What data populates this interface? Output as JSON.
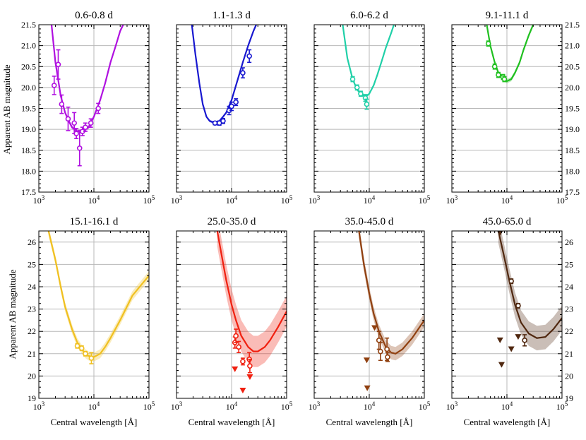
{
  "figure": {
    "ylabel": "Apparent AB magnitude",
    "xlabel": "Central wavelength [Å]"
  },
  "chart_data": [
    {
      "type": "scatter",
      "title": "0.6-0.8 d",
      "color": "#b010e0",
      "row": 0,
      "xlim": [
        1000,
        100000
      ],
      "ylim": [
        21.5,
        17.5
      ],
      "xscale": "log",
      "yticks": [
        "17.5",
        "18.0",
        "18.5",
        "19.0",
        "19.5",
        "20.0",
        "20.5",
        "21.0",
        "21.5"
      ],
      "xticks": [
        "10^3",
        "10^4",
        "10^5"
      ],
      "model": [
        [
          1700,
          21.5
        ],
        [
          2000,
          20.6
        ],
        [
          2500,
          19.8
        ],
        [
          3000,
          19.4
        ],
        [
          3500,
          19.2
        ],
        [
          4000,
          19.05
        ],
        [
          5000,
          18.95
        ],
        [
          6000,
          18.95
        ],
        [
          7000,
          19.0
        ],
        [
          8000,
          19.05
        ],
        [
          10000,
          19.3
        ],
        [
          13000,
          19.7
        ],
        [
          16000,
          20.1
        ],
        [
          20000,
          20.6
        ],
        [
          25000,
          21.0
        ],
        [
          30000,
          21.35
        ],
        [
          34000,
          21.5
        ]
      ],
      "band": 0.05,
      "points": [
        {
          "x": 1900,
          "y": 20.05,
          "err": 0.22,
          "up": false
        },
        {
          "x": 2250,
          "y": 20.55,
          "err": 0.35,
          "up": false
        },
        {
          "x": 2600,
          "y": 19.6,
          "err": 0.22,
          "up": false
        },
        {
          "x": 3400,
          "y": 19.25,
          "err": 0.28,
          "up": false
        },
        {
          "x": 4400,
          "y": 19.15,
          "err": 0.25,
          "up": false
        },
        {
          "x": 4800,
          "y": 18.9,
          "err": 0.12,
          "up": false
        },
        {
          "x": 5500,
          "y": 18.55,
          "err": 0.42,
          "up": false
        },
        {
          "x": 6200,
          "y": 18.95,
          "err": 0.1,
          "up": false
        },
        {
          "x": 7000,
          "y": 19.05,
          "err": 0.1,
          "up": false
        },
        {
          "x": 8800,
          "y": 19.15,
          "err": 0.1,
          "up": false
        },
        {
          "x": 12000,
          "y": 19.5,
          "err": 0.12,
          "up": false
        }
      ]
    },
    {
      "type": "scatter",
      "title": "1.1-1.3 d",
      "color": "#1818d0",
      "row": 0,
      "xlim": [
        1000,
        100000
      ],
      "ylim": [
        21.5,
        17.5
      ],
      "xscale": "log",
      "yticks": [],
      "xticks": [
        "10^3",
        "10^4",
        "10^5"
      ],
      "model": [
        [
          1900,
          21.5
        ],
        [
          2200,
          20.8
        ],
        [
          2600,
          20.1
        ],
        [
          3000,
          19.6
        ],
        [
          3500,
          19.3
        ],
        [
          4000,
          19.2
        ],
        [
          5000,
          19.15
        ],
        [
          6000,
          19.2
        ],
        [
          7000,
          19.3
        ],
        [
          8000,
          19.4
        ],
        [
          10000,
          19.7
        ],
        [
          13000,
          20.2
        ],
        [
          16000,
          20.6
        ],
        [
          20000,
          21.0
        ],
        [
          25000,
          21.35
        ],
        [
          28000,
          21.5
        ]
      ],
      "band": 0.03,
      "points": [
        {
          "x": 5000,
          "y": 19.15,
          "err": 0.04,
          "up": false
        },
        {
          "x": 6000,
          "y": 19.15,
          "err": 0.05,
          "up": false
        },
        {
          "x": 7000,
          "y": 19.2,
          "err": 0.06,
          "up": false
        },
        {
          "x": 9000,
          "y": 19.45,
          "err": 0.1,
          "up": false
        },
        {
          "x": 10000,
          "y": 19.55,
          "err": 0.1,
          "up": false
        },
        {
          "x": 12000,
          "y": 19.65,
          "err": 0.08,
          "up": false
        },
        {
          "x": 16000,
          "y": 20.35,
          "err": 0.12,
          "up": false
        },
        {
          "x": 21000,
          "y": 20.75,
          "err": 0.15,
          "up": false
        }
      ]
    },
    {
      "type": "scatter",
      "title": "6.0-6.2 d",
      "color": "#20d0a8",
      "row": 0,
      "xlim": [
        1000,
        100000
      ],
      "ylim": [
        21.5,
        17.5
      ],
      "xscale": "log",
      "yticks": [],
      "xticks": [
        "10^3",
        "10^4",
        "10^5"
      ],
      "model": [
        [
          3300,
          21.5
        ],
        [
          4000,
          20.7
        ],
        [
          5000,
          20.2
        ],
        [
          6000,
          19.95
        ],
        [
          7000,
          19.85
        ],
        [
          8000,
          19.8
        ],
        [
          9000,
          19.8
        ],
        [
          10000,
          19.85
        ],
        [
          12000,
          20.05
        ],
        [
          14000,
          20.3
        ],
        [
          17000,
          20.65
        ],
        [
          20000,
          20.95
        ],
        [
          25000,
          21.3
        ],
        [
          28000,
          21.5
        ]
      ],
      "band": 0.03,
      "points": [
        {
          "x": 5000,
          "y": 20.2,
          "err": 0.06,
          "up": false
        },
        {
          "x": 6000,
          "y": 20.0,
          "err": 0.06,
          "up": false
        },
        {
          "x": 7000,
          "y": 19.85,
          "err": 0.06,
          "up": false
        },
        {
          "x": 8500,
          "y": 19.75,
          "err": 0.08,
          "up": false
        },
        {
          "x": 9000,
          "y": 19.6,
          "err": 0.12,
          "up": false
        }
      ]
    },
    {
      "type": "scatter",
      "title": "9.1-11.1 d",
      "color": "#20c020",
      "row": 0,
      "xlim": [
        1000,
        100000
      ],
      "ylim": [
        21.5,
        17.5
      ],
      "xscale": "log",
      "yticks": [
        "17.5",
        "18.0",
        "18.5",
        "19.0",
        "19.5",
        "20.0",
        "20.5",
        "21.0",
        "21.5"
      ],
      "xticks": [
        "10^3",
        "10^4",
        "10^5"
      ],
      "yaxis": "right",
      "model": [
        [
          4300,
          21.5
        ],
        [
          5000,
          21.0
        ],
        [
          6000,
          20.6
        ],
        [
          7000,
          20.35
        ],
        [
          8000,
          20.25
        ],
        [
          9000,
          20.2
        ],
        [
          10000,
          20.15
        ],
        [
          12000,
          20.2
        ],
        [
          14000,
          20.35
        ],
        [
          17000,
          20.6
        ],
        [
          20000,
          20.9
        ],
        [
          25000,
          21.25
        ],
        [
          30000,
          21.5
        ]
      ],
      "band": 0.05,
      "points": [
        {
          "x": 4600,
          "y": 21.05,
          "err": 0.06,
          "up": false
        },
        {
          "x": 6000,
          "y": 20.5,
          "err": 0.06,
          "up": false
        },
        {
          "x": 7000,
          "y": 20.3,
          "err": 0.06,
          "up": false
        },
        {
          "x": 8500,
          "y": 20.25,
          "err": 0.06,
          "up": false
        },
        {
          "x": 9000,
          "y": 20.2,
          "err": 0.06,
          "up": false
        }
      ]
    },
    {
      "type": "scatter",
      "title": "15.1-16.1 d",
      "color": "#f0c020",
      "row": 1,
      "xlim": [
        1000,
        100000
      ],
      "ylim": [
        26.5,
        19
      ],
      "xscale": "log",
      "yticks": [
        "19",
        "20",
        "21",
        "22",
        "23",
        "24",
        "25",
        "26"
      ],
      "xticks": [
        "10^3",
        "10^4",
        "10^5"
      ],
      "model": [
        [
          1500,
          26.5
        ],
        [
          2000,
          25.2
        ],
        [
          2500,
          24.0
        ],
        [
          3000,
          23.1
        ],
        [
          4000,
          22.1
        ],
        [
          5000,
          21.5
        ],
        [
          6000,
          21.2
        ],
        [
          7000,
          21.0
        ],
        [
          8000,
          20.9
        ],
        [
          10000,
          20.85
        ],
        [
          13000,
          21.0
        ],
        [
          16000,
          21.3
        ],
        [
          20000,
          21.7
        ],
        [
          30000,
          22.5
        ],
        [
          50000,
          23.6
        ],
        [
          100000,
          24.5
        ]
      ],
      "band": 0.2,
      "points": [
        {
          "x": 5000,
          "y": 21.35,
          "err": 0.1,
          "up": false
        },
        {
          "x": 6000,
          "y": 21.25,
          "err": 0.1,
          "up": false
        },
        {
          "x": 7000,
          "y": 21.0,
          "err": 0.1,
          "up": false
        },
        {
          "x": 9000,
          "y": 20.8,
          "err": 0.25,
          "up": false
        }
      ]
    },
    {
      "type": "scatter",
      "title": "25.0-35.0 d",
      "color": "#f02010",
      "row": 1,
      "xlim": [
        1000,
        100000
      ],
      "ylim": [
        26.5,
        19
      ],
      "xscale": "log",
      "yticks": [],
      "xticks": [
        "10^3",
        "10^4",
        "10^5"
      ],
      "model": [
        [
          5500,
          26.5
        ],
        [
          6500,
          25.5
        ],
        [
          8000,
          24.3
        ],
        [
          10000,
          23.2
        ],
        [
          12000,
          22.5
        ],
        [
          15000,
          21.8
        ],
        [
          20000,
          21.3
        ],
        [
          25000,
          21.1
        ],
        [
          30000,
          21.1
        ],
        [
          40000,
          21.3
        ],
        [
          50000,
          21.6
        ],
        [
          70000,
          22.2
        ],
        [
          100000,
          22.9
        ]
      ],
      "band": 0.7,
      "points": [
        {
          "x": 11500,
          "y": 21.5,
          "err": 0.25,
          "up": false
        },
        {
          "x": 12000,
          "y": 21.8,
          "err": 0.3,
          "up": false
        },
        {
          "x": 13500,
          "y": 21.3,
          "err": 0.25,
          "up": false
        },
        {
          "x": 16000,
          "y": 20.65,
          "err": 0.15,
          "up": false
        },
        {
          "x": 21000,
          "y": 20.75,
          "err": 0.3,
          "up": false
        },
        {
          "x": 21500,
          "y": 20.45,
          "err": 0.3,
          "up": false
        },
        {
          "x": 11500,
          "y": 20.3,
          "err": 0,
          "up": true
        },
        {
          "x": 16000,
          "y": 19.35,
          "err": 0,
          "up": true
        },
        {
          "x": 21500,
          "y": 19.95,
          "err": 0,
          "up": true
        }
      ]
    },
    {
      "type": "scatter",
      "title": "35.0-45.0 d",
      "color": "#904010",
      "row": 1,
      "xlim": [
        1000,
        100000
      ],
      "ylim": [
        26.5,
        19
      ],
      "xscale": "log",
      "yticks": [],
      "xticks": [
        "10^3",
        "10^4",
        "10^5"
      ],
      "model": [
        [
          6500,
          26.5
        ],
        [
          8000,
          25.0
        ],
        [
          10000,
          23.7
        ],
        [
          12000,
          22.8
        ],
        [
          15000,
          22.0
        ],
        [
          20000,
          21.3
        ],
        [
          25000,
          21.05
        ],
        [
          30000,
          21.0
        ],
        [
          40000,
          21.2
        ],
        [
          60000,
          21.7
        ],
        [
          100000,
          22.5
        ]
      ],
      "band": 0.3,
      "points": [
        {
          "x": 15000,
          "y": 21.6,
          "err": 0.4,
          "up": false
        },
        {
          "x": 16000,
          "y": 21.1,
          "err": 0.4,
          "up": false
        },
        {
          "x": 21000,
          "y": 21.2,
          "err": 0.5,
          "up": false
        },
        {
          "x": 21500,
          "y": 20.85,
          "err": 0.2,
          "up": false
        },
        {
          "x": 9200,
          "y": 19.45,
          "err": 0,
          "up": true
        },
        {
          "x": 9000,
          "y": 20.7,
          "err": 0,
          "up": true
        },
        {
          "x": 12500,
          "y": 22.15,
          "err": 0,
          "up": true
        }
      ]
    },
    {
      "type": "scatter",
      "title": "45.0-65.0 d",
      "color": "#502810",
      "row": 1,
      "xlim": [
        1000,
        100000
      ],
      "ylim": [
        26.5,
        19
      ],
      "xscale": "log",
      "yticks": [
        "19",
        "20",
        "21",
        "22",
        "23",
        "24",
        "25",
        "26"
      ],
      "xticks": [
        "10^3",
        "10^4",
        "10^5"
      ],
      "yaxis": "right",
      "model": [
        [
          7000,
          26.5
        ],
        [
          9000,
          25.3
        ],
        [
          11000,
          24.3
        ],
        [
          14000,
          23.2
        ],
        [
          18000,
          22.4
        ],
        [
          25000,
          21.9
        ],
        [
          35000,
          21.7
        ],
        [
          50000,
          21.75
        ],
        [
          70000,
          22.1
        ],
        [
          100000,
          22.6
        ]
      ],
      "band": 0.55,
      "points": [
        {
          "x": 12000,
          "y": 24.25,
          "err": 0.1,
          "up": false
        },
        {
          "x": 16000,
          "y": 23.15,
          "err": 0.1,
          "up": false
        },
        {
          "x": 21000,
          "y": 21.6,
          "err": 0.25,
          "up": false
        },
        {
          "x": 7500,
          "y": 21.6,
          "err": 0,
          "up": true
        },
        {
          "x": 8000,
          "y": 20.5,
          "err": 0,
          "up": true
        },
        {
          "x": 12000,
          "y": 21.2,
          "err": 0,
          "up": true
        },
        {
          "x": 16000,
          "y": 21.75,
          "err": 0,
          "up": true
        },
        {
          "x": 7500,
          "y": 26.4,
          "err": 0,
          "up": true
        }
      ]
    }
  ]
}
